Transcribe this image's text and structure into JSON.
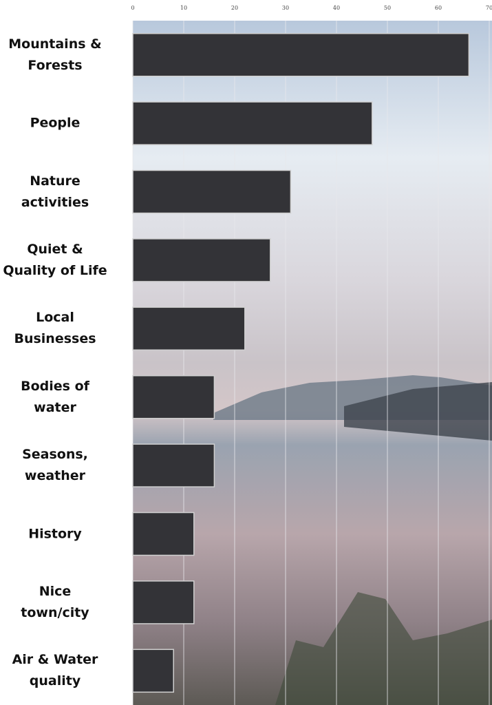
{
  "chart_data": {
    "type": "bar",
    "orientation": "horizontal",
    "categories": [
      "Mountains &\nForests",
      "People",
      "Nature\nactivities",
      "Quiet &\nQuality of Life",
      "Local\nBusinesses",
      "Bodies of\nwater",
      "Seasons,\nweather",
      "History",
      "Nice\ntown/city",
      "Air & Water\nquality"
    ],
    "values": [
      66,
      47,
      31,
      27,
      22,
      16,
      16,
      12,
      12,
      8
    ],
    "color": "#333337",
    "xlim": [
      0,
      70
    ],
    "xticks": [
      0,
      10,
      20,
      30,
      40,
      50,
      60,
      70
    ],
    "grid": true
  }
}
